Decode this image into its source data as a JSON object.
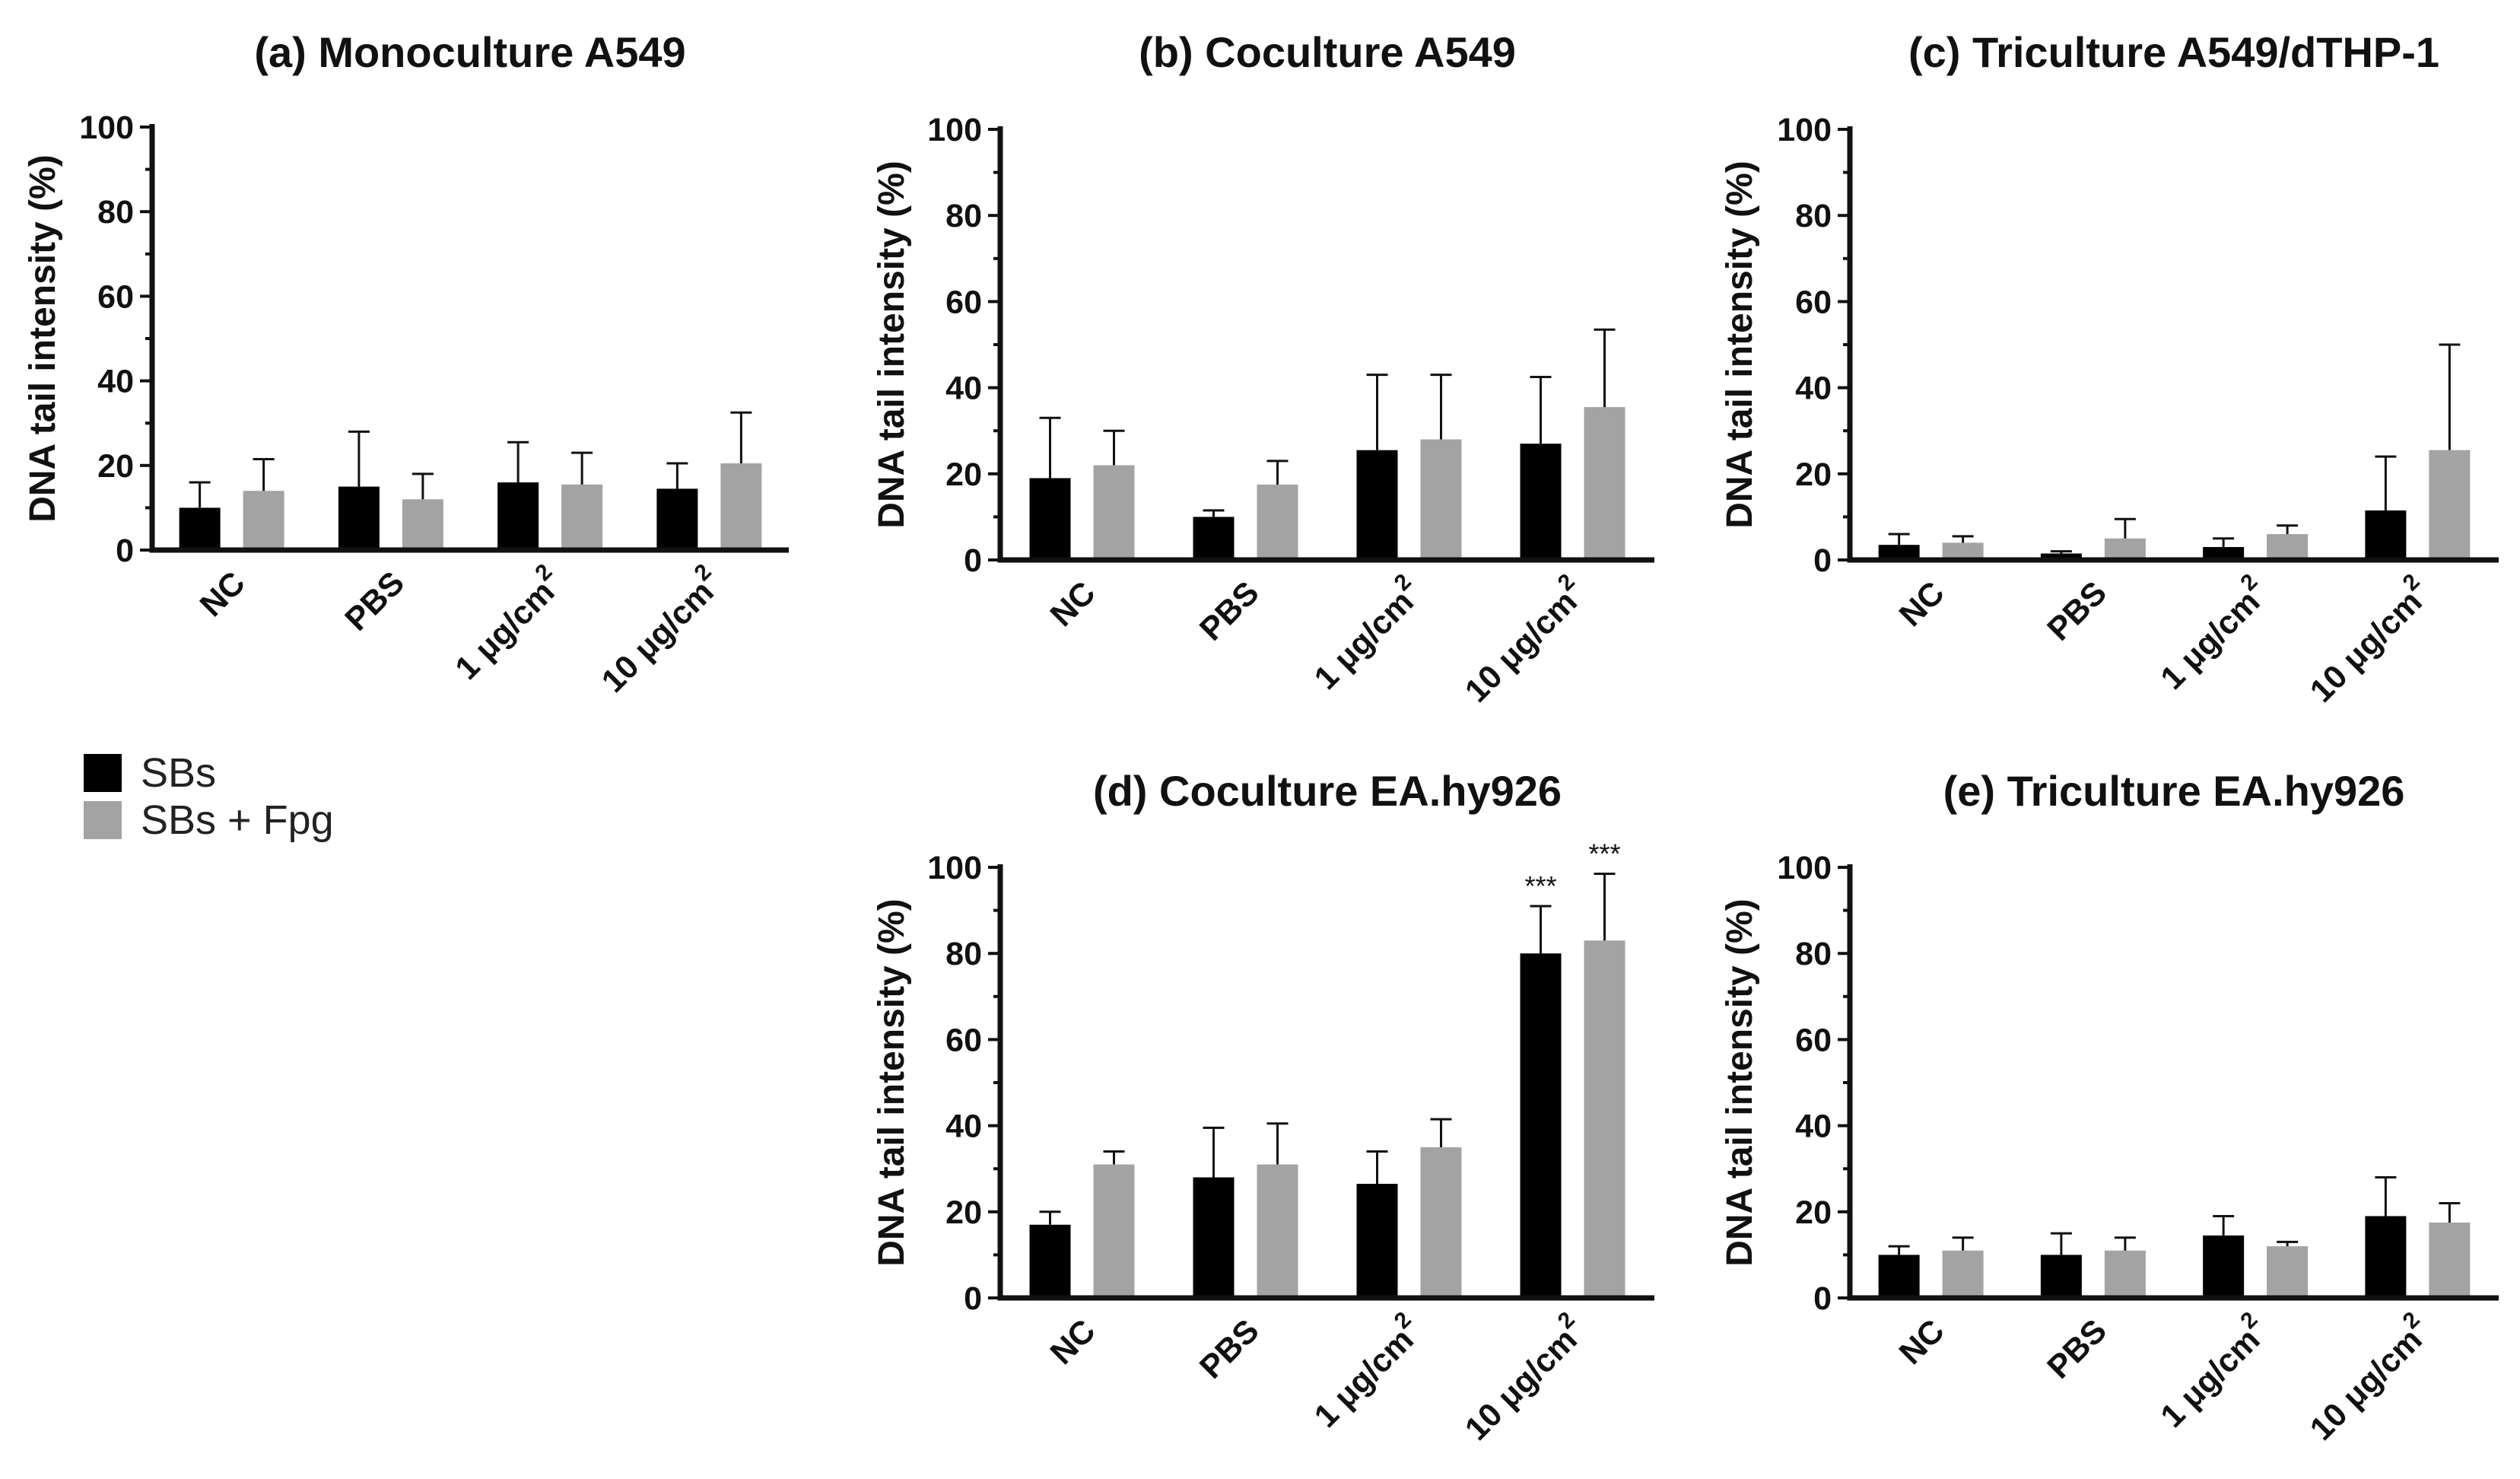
{
  "colors": {
    "SBs": "#000000",
    "SBs + Fpg": "#a3a3a3"
  },
  "legend": {
    "items": [
      {
        "name": "SBs",
        "label": "SBs",
        "color": "#000000"
      },
      {
        "name": "SBs + Fpg",
        "label": "SBs + Fpg",
        "color": "#a3a3a3"
      }
    ]
  },
  "chart_data": [
    {
      "id": "a",
      "type": "bar",
      "title": "(a) Monoculture A549",
      "ylabel": "DNA tail intensity (%)",
      "ylim": [
        0,
        100
      ],
      "yticks": [
        0,
        20,
        40,
        60,
        80,
        100
      ],
      "categories": [
        {
          "base": "NC",
          "sup": ""
        },
        {
          "base": "PBS",
          "sup": ""
        },
        {
          "base": "1 μg/cm",
          "sup": "2"
        },
        {
          "base": "10 μg/cm",
          "sup": "2"
        }
      ],
      "series": [
        {
          "name": "SBs",
          "values": [
            10,
            15,
            16,
            14.5
          ],
          "errors": [
            16,
            28,
            25.5,
            20.5
          ]
        },
        {
          "name": "SBs + Fpg",
          "values": [
            14,
            12,
            15.5,
            20.5
          ],
          "errors": [
            21.5,
            18,
            23,
            32.5
          ]
        }
      ],
      "annotations": []
    },
    {
      "id": "b",
      "type": "bar",
      "title": "(b) Coculture A549",
      "ylabel": "DNA tail intensity (%)",
      "ylim": [
        0,
        100
      ],
      "yticks": [
        0,
        20,
        40,
        60,
        80,
        100
      ],
      "categories": [
        {
          "base": "NC",
          "sup": ""
        },
        {
          "base": "PBS",
          "sup": ""
        },
        {
          "base": "1 μg/cm",
          "sup": "2"
        },
        {
          "base": "10 μg/cm",
          "sup": "2"
        }
      ],
      "series": [
        {
          "name": "SBs",
          "values": [
            19,
            10,
            25.5,
            27
          ],
          "errors": [
            33,
            11.5,
            43,
            42.5
          ]
        },
        {
          "name": "SBs + Fpg",
          "values": [
            22,
            17.5,
            28,
            35.5
          ],
          "errors": [
            30,
            23,
            43,
            53.5
          ]
        }
      ],
      "annotations": []
    },
    {
      "id": "c",
      "type": "bar",
      "title": "(c) Triculture A549/dTHP-1",
      "ylabel": "DNA tail intensity (%)",
      "ylim": [
        0,
        100
      ],
      "yticks": [
        0,
        20,
        40,
        60,
        80,
        100
      ],
      "categories": [
        {
          "base": "NC",
          "sup": ""
        },
        {
          "base": "PBS",
          "sup": ""
        },
        {
          "base": "1 μg/cm",
          "sup": "2"
        },
        {
          "base": "10 μg/cm",
          "sup": "2"
        }
      ],
      "series": [
        {
          "name": "SBs",
          "values": [
            3.5,
            1.5,
            3,
            11.5
          ],
          "errors": [
            6,
            2,
            5,
            24
          ]
        },
        {
          "name": "SBs + Fpg",
          "values": [
            4,
            5,
            6,
            25.5
          ],
          "errors": [
            5.5,
            9.5,
            8,
            50
          ]
        }
      ],
      "annotations": []
    },
    {
      "id": "d",
      "type": "bar",
      "title": "(d) Coculture EA.hy926",
      "ylabel": "DNA tail intensity (%)",
      "ylim": [
        0,
        100
      ],
      "yticks": [
        0,
        20,
        40,
        60,
        80,
        100
      ],
      "categories": [
        {
          "base": "NC",
          "sup": ""
        },
        {
          "base": "PBS",
          "sup": ""
        },
        {
          "base": "1 μg/cm",
          "sup": "2"
        },
        {
          "base": "10 μg/cm",
          "sup": "2"
        }
      ],
      "series": [
        {
          "name": "SBs",
          "values": [
            17,
            28,
            26.5,
            80
          ],
          "errors": [
            20,
            39.5,
            34,
            91
          ]
        },
        {
          "name": "SBs + Fpg",
          "values": [
            31,
            31,
            35,
            83
          ],
          "errors": [
            34,
            40.5,
            41.5,
            98.5
          ]
        }
      ],
      "annotations": [
        {
          "category_index": 3,
          "series_index": 0,
          "text": "***"
        },
        {
          "category_index": 3,
          "series_index": 1,
          "text": "***"
        }
      ]
    },
    {
      "id": "e",
      "type": "bar",
      "title": "(e) Triculture  EA.hy926",
      "ylabel": "DNA tail intensity (%)",
      "ylim": [
        0,
        100
      ],
      "yticks": [
        0,
        20,
        40,
        60,
        80,
        100
      ],
      "categories": [
        {
          "base": "NC",
          "sup": ""
        },
        {
          "base": "PBS",
          "sup": ""
        },
        {
          "base": "1 μg/cm",
          "sup": "2"
        },
        {
          "base": "10 μg/cm",
          "sup": "2"
        }
      ],
      "series": [
        {
          "name": "SBs",
          "values": [
            10,
            10,
            14.5,
            19
          ],
          "errors": [
            12,
            15,
            19,
            28
          ]
        },
        {
          "name": "SBs + Fpg",
          "values": [
            11,
            11,
            12,
            17.5
          ],
          "errors": [
            14,
            14,
            13,
            22
          ]
        }
      ],
      "annotations": []
    }
  ]
}
